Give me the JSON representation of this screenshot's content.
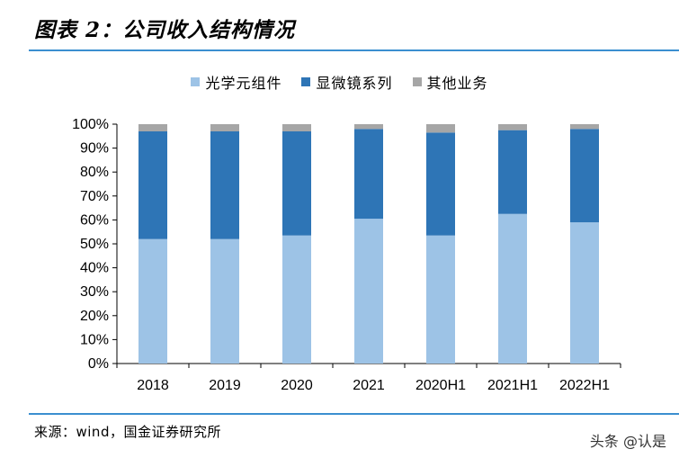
{
  "header": {
    "title": "图表 2：公司收入结构情况"
  },
  "footer": {
    "source": "来源：wind，国金证券研究所",
    "watermark": "头条 @认是"
  },
  "colors": {
    "rule": "#3b8fd0"
  },
  "chart_data": {
    "type": "bar",
    "stacked": true,
    "categories": [
      "2018",
      "2019",
      "2020",
      "2021",
      "2020H1",
      "2021H1",
      "2022H1"
    ],
    "series": [
      {
        "name": "光学元组件",
        "color": "#9dc3e6",
        "values": [
          52,
          52,
          53.5,
          60.5,
          53.5,
          62.5,
          59
        ]
      },
      {
        "name": "显微镜系列",
        "color": "#2e75b6",
        "values": [
          45,
          45,
          43.5,
          37.5,
          43,
          35,
          39
        ]
      },
      {
        "name": "其他业务",
        "color": "#a6a6a6",
        "values": [
          3,
          3,
          3,
          2,
          3.5,
          2.5,
          2
        ]
      }
    ],
    "yticks": [
      "0%",
      "10%",
      "20%",
      "30%",
      "40%",
      "50%",
      "60%",
      "70%",
      "80%",
      "90%",
      "100%"
    ],
    "ylim": [
      0,
      100
    ],
    "legend_position": "top-center",
    "grid": false
  }
}
